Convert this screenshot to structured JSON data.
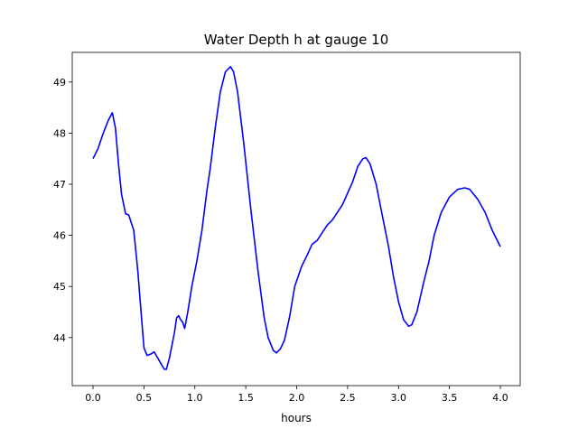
{
  "chart_data": {
    "type": "line",
    "title": "Water Depth h at gauge 10",
    "xlabel": "hours",
    "ylabel": "",
    "xlim": [
      -0.204,
      4.195
    ],
    "ylim": [
      43.06,
      49.58
    ],
    "xticks": [
      0.0,
      0.5,
      1.0,
      1.5,
      2.0,
      2.5,
      3.0,
      3.5,
      4.0
    ],
    "xtick_labels": [
      "0.0",
      "0.5",
      "1.0",
      "1.5",
      "2.0",
      "2.5",
      "3.0",
      "3.5",
      "4.0"
    ],
    "yticks": [
      44,
      45,
      46,
      47,
      48,
      49
    ],
    "ytick_labels": [
      "44",
      "45",
      "46",
      "47",
      "48",
      "49"
    ],
    "grid": false,
    "series": [
      {
        "name": "h",
        "color": "#0000ff",
        "x": [
          0,
          0.05,
          0.1,
          0.15,
          0.19,
          0.22,
          0.25,
          0.28,
          0.32,
          0.35,
          0.4,
          0.44,
          0.48,
          0.5,
          0.53,
          0.57,
          0.6,
          0.65,
          0.7,
          0.72,
          0.75,
          0.8,
          0.82,
          0.84,
          0.86,
          0.88,
          0.9,
          0.93,
          0.97,
          1.02,
          1.07,
          1.12,
          1.15,
          1.2,
          1.25,
          1.3,
          1.35,
          1.38,
          1.42,
          1.48,
          1.55,
          1.62,
          1.68,
          1.72,
          1.77,
          1.8,
          1.84,
          1.88,
          1.93,
          1.98,
          2.05,
          2.1,
          2.15,
          2.2,
          2.25,
          2.3,
          2.35,
          2.45,
          2.55,
          2.6,
          2.65,
          2.68,
          2.72,
          2.78,
          2.85,
          2.9,
          2.95,
          3.0,
          3.05,
          3.1,
          3.13,
          3.18,
          3.25,
          3.3,
          3.35,
          3.42,
          3.5,
          3.58,
          3.65,
          3.7,
          3.78,
          3.85,
          3.92,
          4.0
        ],
        "y": [
          47.5,
          47.7,
          48.0,
          48.25,
          48.4,
          48.1,
          47.4,
          46.8,
          46.42,
          46.4,
          46.1,
          45.3,
          44.3,
          43.8,
          43.65,
          43.68,
          43.72,
          43.55,
          43.38,
          43.38,
          43.6,
          44.1,
          44.38,
          44.43,
          44.35,
          44.3,
          44.18,
          44.5,
          45.0,
          45.5,
          46.1,
          46.9,
          47.3,
          48.1,
          48.8,
          49.2,
          49.3,
          49.2,
          48.8,
          47.8,
          46.5,
          45.3,
          44.4,
          44.0,
          43.75,
          43.7,
          43.78,
          43.95,
          44.4,
          45.0,
          45.4,
          45.6,
          45.82,
          45.9,
          46.05,
          46.2,
          46.3,
          46.6,
          47.05,
          47.35,
          47.5,
          47.52,
          47.4,
          47.0,
          46.3,
          45.8,
          45.2,
          44.7,
          44.35,
          44.22,
          44.25,
          44.5,
          45.1,
          45.5,
          46.0,
          46.45,
          46.75,
          46.9,
          46.93,
          46.9,
          46.7,
          46.45,
          46.1,
          45.78
        ]
      }
    ]
  }
}
